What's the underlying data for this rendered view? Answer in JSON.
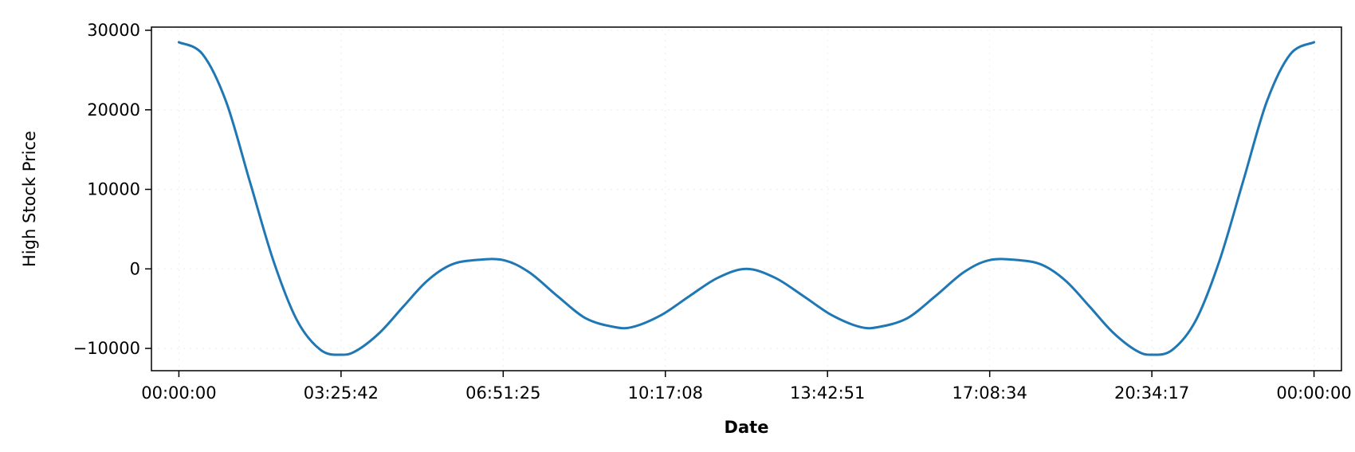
{
  "chart_data": {
    "type": "line",
    "title": "",
    "xlabel": "Date",
    "ylabel": "High Stock Price",
    "xticks": [
      "00:00:00",
      "03:25:42",
      "06:51:25",
      "10:17:08",
      "13:42:51",
      "17:08:34",
      "20:34:17",
      "00:00:00"
    ],
    "xlim_hours": [
      -0.58,
      24.58
    ],
    "ylim": [
      -12800,
      30400
    ],
    "yticks": [
      -10000,
      0,
      10000,
      20000,
      30000
    ],
    "ytick_labels": [
      "−10000",
      "0",
      "10000",
      "20000",
      "30000"
    ],
    "grid": true,
    "series": [
      {
        "color": "#1f77b4",
        "x_hours": [
          0.0,
          0.5,
          1.0,
          1.5,
          2.0,
          2.5,
          3.0,
          3.43,
          3.75,
          4.25,
          4.75,
          5.25,
          5.75,
          6.25,
          6.86,
          7.4,
          8.0,
          8.6,
          9.2,
          9.6,
          10.2,
          10.8,
          11.4,
          12.0,
          12.6,
          13.2,
          13.8,
          14.4,
          14.8,
          15.4,
          16.0,
          16.6,
          17.14,
          17.75,
          18.25,
          18.75,
          19.25,
          19.75,
          20.25,
          20.57,
          21.0,
          21.5,
          22.0,
          22.5,
          23.0,
          23.5,
          24.0
        ],
        "values": [
          28500,
          27000,
          21000,
          11000,
          1000,
          -6500,
          -10200,
          -10800,
          -10300,
          -8000,
          -4700,
          -1500,
          500,
          1100,
          1100,
          -400,
          -3400,
          -6200,
          -7300,
          -7300,
          -5800,
          -3400,
          -1100,
          0,
          -1100,
          -3400,
          -5800,
          -7300,
          -7300,
          -6200,
          -3400,
          -400,
          1100,
          1100,
          500,
          -1500,
          -4700,
          -8000,
          -10300,
          -10800,
          -10200,
          -6500,
          1000,
          11000,
          21000,
          27000,
          28500
        ]
      }
    ]
  }
}
